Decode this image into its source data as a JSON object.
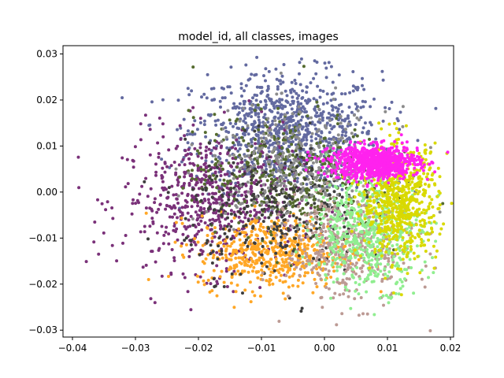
{
  "chart_data": {
    "type": "scatter",
    "title": "model_id, all classes, images",
    "xlabel": "",
    "ylabel": "",
    "xlim": [
      -0.0415,
      0.0205
    ],
    "ylim": [
      -0.0315,
      0.0318
    ],
    "xticks": [
      -0.04,
      -0.03,
      -0.02,
      -0.01,
      0.0,
      0.01,
      0.02
    ],
    "xtick_labels": [
      "−0.04",
      "−0.03",
      "−0.02",
      "−0.01",
      "0.00",
      "0.01",
      "0.02"
    ],
    "yticks": [
      -0.03,
      -0.02,
      -0.01,
      0.0,
      0.01,
      0.02,
      0.03
    ],
    "ytick_labels": [
      "−0.03",
      "−0.02",
      "−0.01",
      "0.00",
      "0.01",
      "0.02",
      "0.03"
    ],
    "grid": false,
    "legend": "none",
    "series": [
      {
        "color": "#636aa0",
        "cx": -0.006,
        "cy": 0.013,
        "sx": 0.0075,
        "sy": 0.0065,
        "n": 900
      },
      {
        "color": "#7a3179",
        "cx": -0.018,
        "cy": -0.002,
        "sx": 0.007,
        "sy": 0.0075,
        "n": 650
      },
      {
        "color": "#ffa726",
        "cx": -0.008,
        "cy": -0.013,
        "sx": 0.006,
        "sy": 0.004,
        "n": 550
      },
      {
        "color": "#556b2f",
        "cx": -0.006,
        "cy": 0.004,
        "sx": 0.0075,
        "sy": 0.0065,
        "n": 420
      },
      {
        "color": "#3d3d3d",
        "cx": -0.008,
        "cy": -0.004,
        "sx": 0.007,
        "sy": 0.007,
        "n": 320
      },
      {
        "color": "#8c8c8c",
        "cx": -0.004,
        "cy": 0.006,
        "sx": 0.007,
        "sy": 0.006,
        "n": 320
      },
      {
        "color": "#bc9a94",
        "cx": 0.004,
        "cy": -0.012,
        "sx": 0.005,
        "sy": 0.006,
        "n": 420
      },
      {
        "color": "#90ee90",
        "cx": 0.007,
        "cy": -0.009,
        "sx": 0.0045,
        "sy": 0.006,
        "n": 550
      },
      {
        "color": "#d9d900",
        "cx": 0.012,
        "cy": -0.002,
        "sx": 0.003,
        "sy": 0.006,
        "n": 650
      },
      {
        "color": "#ff22ee",
        "cx": 0.008,
        "cy": 0.0065,
        "sx": 0.0035,
        "sy": 0.0018,
        "n": 850
      }
    ]
  }
}
